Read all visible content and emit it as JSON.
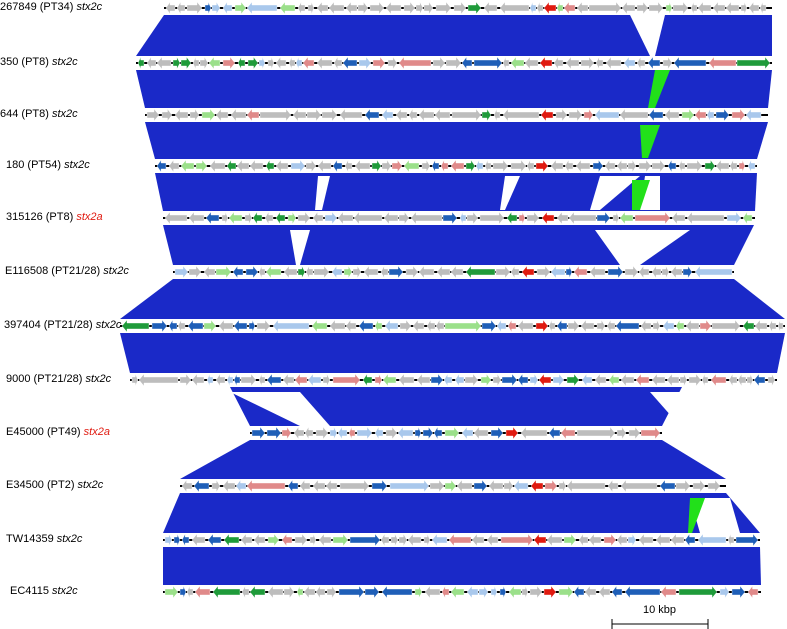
{
  "colors": {
    "link": "#1a29c8",
    "link_inverted": "#22e01a",
    "backbone": "#000000",
    "grey": "#bdbdbd",
    "light_blue": "#a9c8ec",
    "dark_blue": "#1f5fb8",
    "green": "#1f9b3a",
    "light_green": "#9be08a",
    "pink": "#e08a8a",
    "red": "#e01a10",
    "stx_highlight": "#e01a10"
  },
  "tracks": [
    {
      "strain": "267849 (PT34)",
      "gene": "stx2c",
      "gene_color": "#000000"
    },
    {
      "strain": "350 (PT8)",
      "gene": "stx2c",
      "gene_color": "#000000"
    },
    {
      "strain": "644 (PT8)",
      "gene": "stx2c",
      "gene_color": "#000000"
    },
    {
      "strain": "180 (PT54)",
      "gene": "stx2c",
      "gene_color": "#000000"
    },
    {
      "strain": "315126 (PT8)",
      "gene": "stx2a",
      "gene_color": "#e01a10"
    },
    {
      "strain": "E116508 (PT21/28)",
      "gene": "stx2c",
      "gene_color": "#000000"
    },
    {
      "strain": "397404 (PT21/28)",
      "gene": "stx2c",
      "gene_color": "#000000"
    },
    {
      "strain": "9000 (PT21/28)",
      "gene": "stx2c",
      "gene_color": "#000000"
    },
    {
      "strain": "E45000 (PT49)",
      "gene": "stx2a",
      "gene_color": "#e01a10"
    },
    {
      "strain": "E34500 (PT2)",
      "gene": "stx2c",
      "gene_color": "#000000"
    },
    {
      "strain": "TW14359",
      "gene": "stx2c",
      "gene_color": "#000000"
    },
    {
      "strain": "EC4115",
      "gene": "stx2c",
      "gene_color": "#000000"
    }
  ],
  "scale_bar": {
    "label": "10 kbp"
  }
}
